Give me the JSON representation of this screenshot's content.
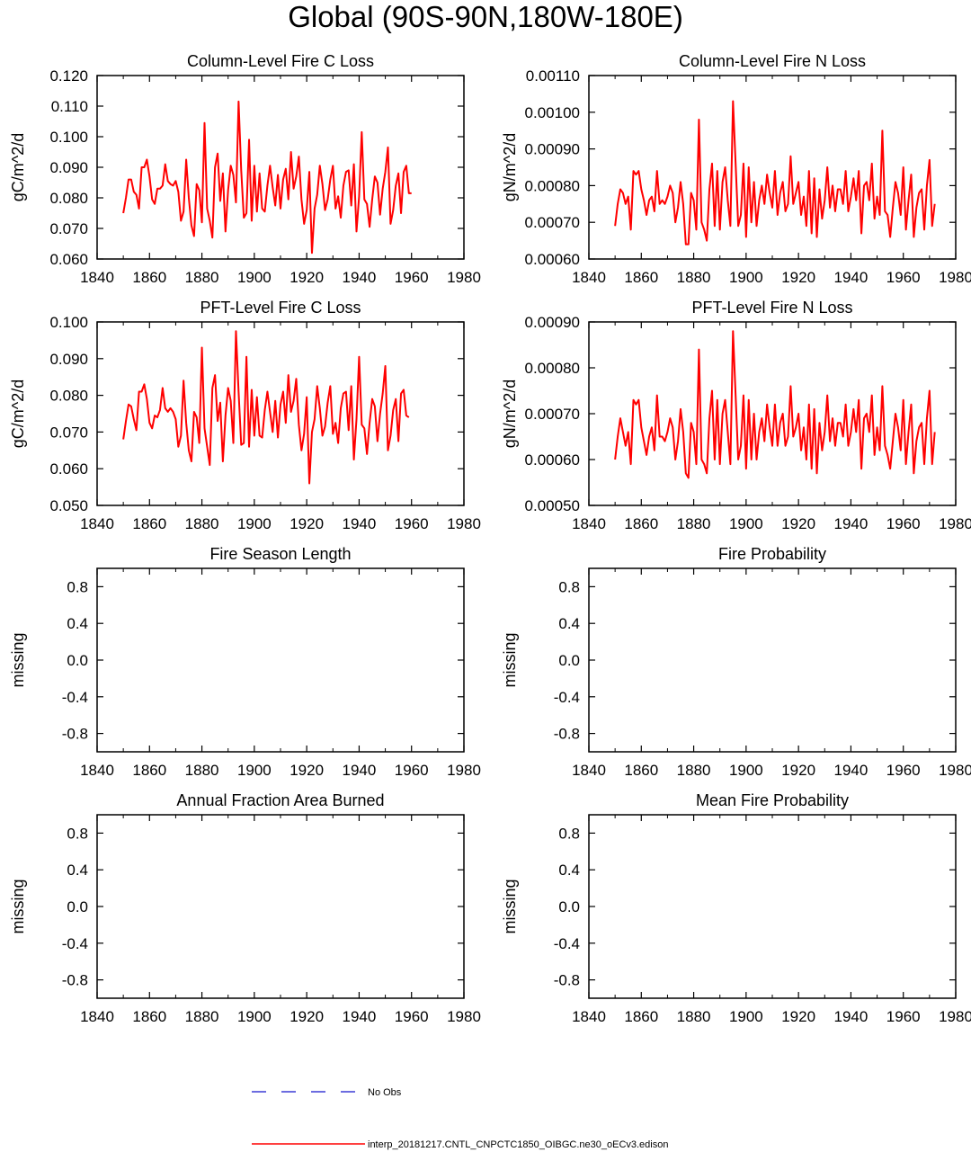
{
  "page_title": "Global (90S-90N,180W-180E)",
  "x_ticks": [
    1840,
    1860,
    1880,
    1900,
    1920,
    1940,
    1960,
    1980
  ],
  "legend": [
    {
      "label": "No Obs",
      "color": "#3b3bd6",
      "style": "dashed"
    },
    {
      "label": "interp_20181217.CNTL_CNPCTC1850_OIBGC.ne30_oECv3.edison",
      "color": "#ff0000",
      "style": "solid"
    }
  ],
  "colors": {
    "series": "#ff0000",
    "obs": "#3b3bd6",
    "axis": "#000000"
  },
  "chart_data": [
    {
      "type": "line",
      "title": "Column-Level Fire C Loss",
      "ylabel": "gC/m^2/d",
      "xlim": [
        1840,
        1980
      ],
      "ylim": [
        0.06,
        0.12
      ],
      "yticks": [
        "0.060",
        "0.070",
        "0.080",
        "0.090",
        "0.100",
        "0.110",
        "0.120"
      ],
      "x0": 1850,
      "values": [
        0.075,
        0.08,
        0.086,
        0.086,
        0.082,
        0.081,
        0.0765,
        0.09,
        0.09,
        0.0925,
        0.087,
        0.0795,
        0.078,
        0.083,
        0.083,
        0.084,
        0.091,
        0.0855,
        0.0845,
        0.084,
        0.0855,
        0.082,
        0.0725,
        0.0755,
        0.0925,
        0.08,
        0.071,
        0.0675,
        0.0845,
        0.0825,
        0.072,
        0.1045,
        0.0765,
        0.0725,
        0.067,
        0.09,
        0.0945,
        0.079,
        0.088,
        0.069,
        0.0825,
        0.0905,
        0.0875,
        0.0785,
        0.1115,
        0.089,
        0.0735,
        0.075,
        0.099,
        0.0725,
        0.0905,
        0.0755,
        0.088,
        0.0765,
        0.0755,
        0.084,
        0.0905,
        0.0835,
        0.0775,
        0.0875,
        0.0765,
        0.086,
        0.0895,
        0.0795,
        0.095,
        0.083,
        0.087,
        0.0935,
        0.0795,
        0.0715,
        0.076,
        0.0885,
        0.062,
        0.0765,
        0.081,
        0.0905,
        0.0845,
        0.076,
        0.0795,
        0.086,
        0.0905,
        0.0765,
        0.0805,
        0.0735,
        0.084,
        0.0885,
        0.089,
        0.0775,
        0.091,
        0.069,
        0.0805,
        0.1015,
        0.0795,
        0.078,
        0.0705,
        0.0795,
        0.087,
        0.085,
        0.0745,
        0.083,
        0.0885,
        0.0965,
        0.0715,
        0.076,
        0.084,
        0.088,
        0.075,
        0.0885,
        0.0905,
        0.0815,
        0.0815
      ]
    },
    {
      "type": "line",
      "title": "Column-Level Fire N Loss",
      "ylabel": "gN/m^2/d",
      "xlim": [
        1840,
        1980
      ],
      "ylim": [
        0.0006,
        0.0011
      ],
      "yticks": [
        "0.00060",
        "0.00070",
        "0.00080",
        "0.00090",
        "0.00100",
        "0.00110"
      ],
      "x0": 1850,
      "values": [
        0.00069,
        0.00075,
        0.00079,
        0.00078,
        0.00075,
        0.00077,
        0.00068,
        0.00084,
        0.00083,
        0.00084,
        0.00079,
        0.00076,
        0.00072,
        0.00076,
        0.00077,
        0.00073,
        0.00084,
        0.00075,
        0.00076,
        0.00075,
        0.00077,
        0.0008,
        0.00078,
        0.0007,
        0.00074,
        0.00081,
        0.00075,
        0.00064,
        0.00064,
        0.00078,
        0.00076,
        0.00068,
        0.00098,
        0.0007,
        0.00068,
        0.00065,
        0.00079,
        0.00086,
        0.00069,
        0.00084,
        0.00068,
        0.00081,
        0.00085,
        0.00076,
        0.00069,
        0.00103,
        0.00086,
        0.00069,
        0.00072,
        0.00086,
        0.00066,
        0.00085,
        0.0007,
        0.00081,
        0.00069,
        0.00076,
        0.0008,
        0.00075,
        0.00083,
        0.00078,
        0.00074,
        0.00084,
        0.00072,
        0.00078,
        0.00081,
        0.00073,
        0.00075,
        0.00088,
        0.00075,
        0.00078,
        0.00081,
        0.00072,
        0.00077,
        0.00069,
        0.00084,
        0.00067,
        0.00082,
        0.00066,
        0.00079,
        0.00071,
        0.00076,
        0.00085,
        0.00074,
        0.0008,
        0.00073,
        0.00079,
        0.00079,
        0.00075,
        0.00084,
        0.00073,
        0.00077,
        0.00082,
        0.00076,
        0.00084,
        0.00067,
        0.0008,
        0.00081,
        0.00076,
        0.00086,
        0.00071,
        0.00077,
        0.00072,
        0.00095,
        0.00073,
        0.00072,
        0.00066,
        0.00074,
        0.00081,
        0.00078,
        0.00072,
        0.00085,
        0.00068,
        0.00076,
        0.00083,
        0.00066,
        0.00074,
        0.00078,
        0.00079,
        0.00068,
        0.0008,
        0.00087,
        0.00069,
        0.00075
      ]
    },
    {
      "type": "line",
      "title": "PFT-Level Fire C Loss",
      "ylabel": "gC/m^2/d",
      "xlim": [
        1840,
        1980
      ],
      "ylim": [
        0.05,
        0.1
      ],
      "yticks": [
        "0.050",
        "0.060",
        "0.070",
        "0.080",
        "0.090",
        "0.100"
      ],
      "x0": 1850,
      "values": [
        0.068,
        0.073,
        0.0775,
        0.077,
        0.0735,
        0.0705,
        0.081,
        0.081,
        0.083,
        0.079,
        0.0725,
        0.071,
        0.0745,
        0.074,
        0.076,
        0.082,
        0.0765,
        0.0755,
        0.0765,
        0.0755,
        0.0735,
        0.066,
        0.069,
        0.084,
        0.0725,
        0.065,
        0.062,
        0.0755,
        0.074,
        0.067,
        0.093,
        0.071,
        0.066,
        0.061,
        0.082,
        0.0855,
        0.073,
        0.078,
        0.062,
        0.0745,
        0.082,
        0.0785,
        0.067,
        0.0975,
        0.081,
        0.0665,
        0.067,
        0.0905,
        0.066,
        0.0815,
        0.069,
        0.0795,
        0.069,
        0.0685,
        0.076,
        0.081,
        0.0755,
        0.07,
        0.0785,
        0.0685,
        0.0775,
        0.081,
        0.0725,
        0.0855,
        0.0755,
        0.0785,
        0.0845,
        0.072,
        0.065,
        0.0695,
        0.0795,
        0.056,
        0.07,
        0.0735,
        0.0825,
        0.0765,
        0.069,
        0.0715,
        0.078,
        0.0825,
        0.0695,
        0.0725,
        0.067,
        0.0765,
        0.0805,
        0.081,
        0.0705,
        0.0825,
        0.0625,
        0.0735,
        0.0905,
        0.072,
        0.071,
        0.064,
        0.0725,
        0.079,
        0.077,
        0.0675,
        0.075,
        0.0805,
        0.088,
        0.065,
        0.069,
        0.076,
        0.079,
        0.0675,
        0.0805,
        0.0815,
        0.0745,
        0.074
      ]
    },
    {
      "type": "line",
      "title": "PFT-Level Fire N Loss",
      "ylabel": "gN/m^2/d",
      "xlim": [
        1840,
        1980
      ],
      "ylim": [
        0.0005,
        0.0009
      ],
      "yticks": [
        "0.00050",
        "0.00060",
        "0.00070",
        "0.00080",
        "0.00090"
      ],
      "x0": 1850,
      "values": [
        0.0006,
        0.00065,
        0.00069,
        0.00066,
        0.00063,
        0.00066,
        0.00059,
        0.00073,
        0.00072,
        0.00073,
        0.00067,
        0.00064,
        0.00061,
        0.00065,
        0.00067,
        0.00062,
        0.00074,
        0.00065,
        0.00065,
        0.00064,
        0.00066,
        0.00069,
        0.00067,
        0.0006,
        0.00064,
        0.00071,
        0.00066,
        0.00057,
        0.00056,
        0.00068,
        0.00066,
        0.00059,
        0.00084,
        0.0006,
        0.00059,
        0.00057,
        0.00069,
        0.00075,
        0.0006,
        0.00073,
        0.00059,
        0.0007,
        0.00073,
        0.00066,
        0.00059,
        0.00088,
        0.00074,
        0.0006,
        0.00063,
        0.00074,
        0.00058,
        0.00073,
        0.0006,
        0.0007,
        0.0006,
        0.00066,
        0.00069,
        0.00064,
        0.00072,
        0.00067,
        0.00063,
        0.00072,
        0.00063,
        0.00068,
        0.0007,
        0.00063,
        0.00065,
        0.00076,
        0.00065,
        0.00067,
        0.0007,
        0.00062,
        0.00067,
        0.0006,
        0.00072,
        0.00058,
        0.00071,
        0.00057,
        0.00068,
        0.00062,
        0.00066,
        0.00074,
        0.00064,
        0.00069,
        0.00063,
        0.00068,
        0.00068,
        0.00065,
        0.00072,
        0.00063,
        0.00066,
        0.00071,
        0.00066,
        0.00073,
        0.00058,
        0.00069,
        0.0007,
        0.00066,
        0.00074,
        0.00061,
        0.00067,
        0.00062,
        0.00076,
        0.00063,
        0.00061,
        0.00058,
        0.00064,
        0.0007,
        0.00067,
        0.00062,
        0.00073,
        0.00059,
        0.00066,
        0.00072,
        0.00057,
        0.00064,
        0.00067,
        0.00068,
        0.00059,
        0.00069,
        0.00075,
        0.00059,
        0.00066
      ]
    },
    {
      "type": "line",
      "title": "Fire Season Length",
      "ylabel": "missing",
      "xlim": [
        1840,
        1980
      ],
      "ylim": [
        -1.0,
        1.0
      ],
      "yticks": [
        "-0.8",
        "-0.4",
        "0.0",
        "0.4",
        "0.8"
      ],
      "values": []
    },
    {
      "type": "line",
      "title": "Fire Probability",
      "ylabel": "missing",
      "xlim": [
        1840,
        1980
      ],
      "ylim": [
        -1.0,
        1.0
      ],
      "yticks": [
        "-0.8",
        "-0.4",
        "0.0",
        "0.4",
        "0.8"
      ],
      "values": []
    },
    {
      "type": "line",
      "title": "Annual Fraction Area Burned",
      "ylabel": "missing",
      "xlim": [
        1840,
        1980
      ],
      "ylim": [
        -1.0,
        1.0
      ],
      "yticks": [
        "-0.8",
        "-0.4",
        "0.0",
        "0.4",
        "0.8"
      ],
      "values": []
    },
    {
      "type": "line",
      "title": "Mean Fire Probability",
      "ylabel": "missing",
      "xlim": [
        1840,
        1980
      ],
      "ylim": [
        -1.0,
        1.0
      ],
      "yticks": [
        "-0.8",
        "-0.4",
        "0.0",
        "0.4",
        "0.8"
      ],
      "values": []
    }
  ]
}
